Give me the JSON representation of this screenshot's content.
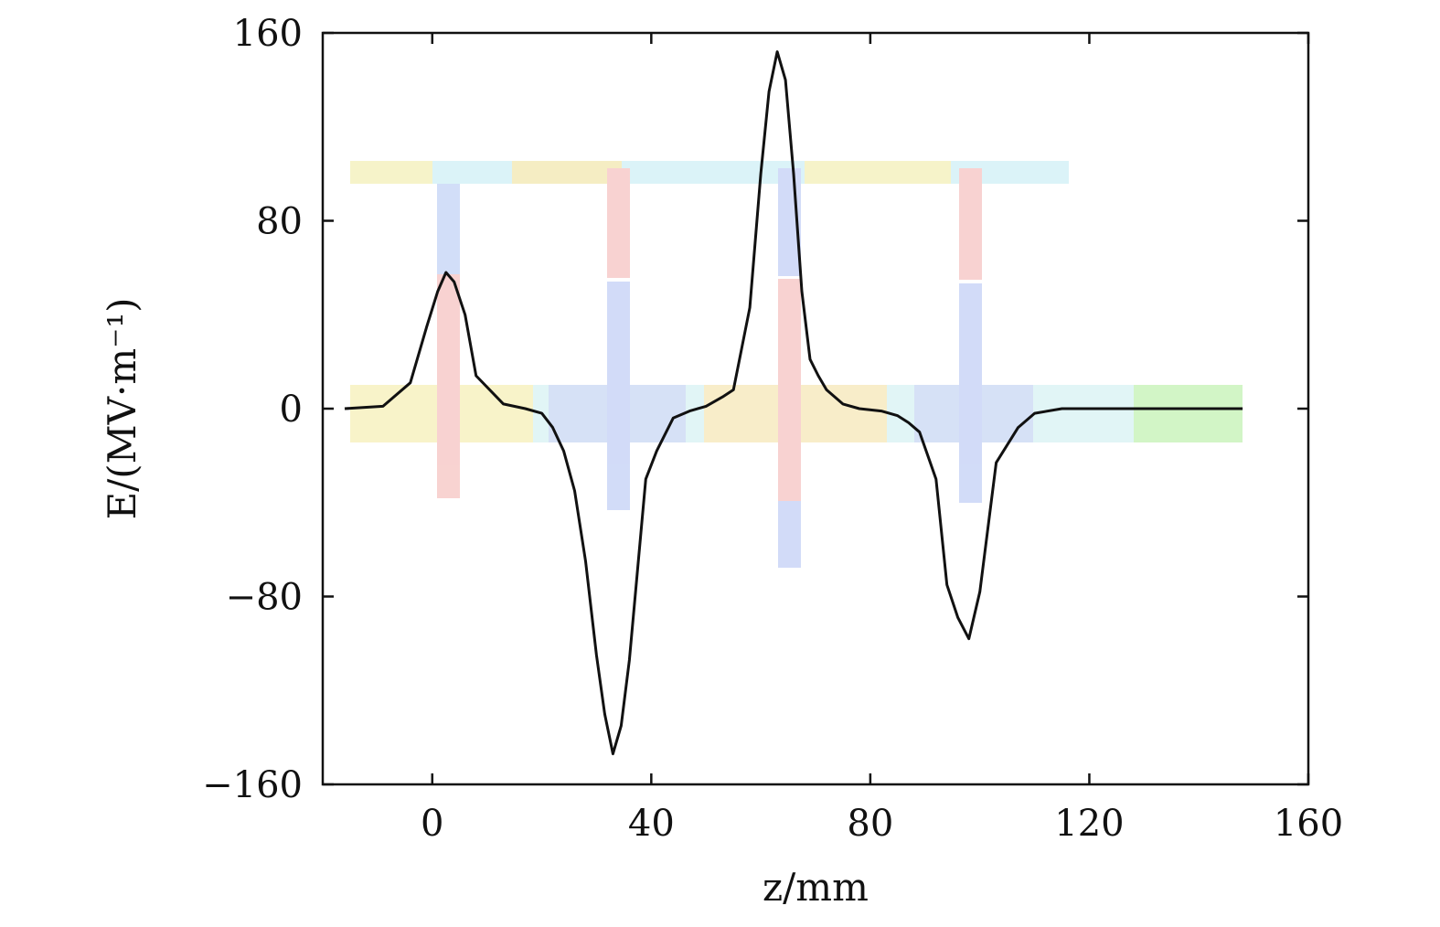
{
  "chart_data": {
    "type": "line",
    "title": "",
    "xlabel": "z/mm",
    "ylabel": "E/(MV·m⁻¹)",
    "xlim": [
      -20,
      160
    ],
    "ylim": [
      -160,
      160
    ],
    "xticks": [
      0,
      40,
      80,
      120,
      160
    ],
    "yticks": [
      -160,
      -80,
      0,
      80,
      160
    ],
    "xtick_labels": [
      "0",
      "40",
      "80",
      "120",
      "160"
    ],
    "ytick_labels": [
      "−160",
      "−80",
      "0",
      "80",
      "160"
    ],
    "grid": false,
    "legend": "none",
    "series": [
      {
        "name": "E",
        "color": "#111111",
        "x": [
          -16,
          -9,
          -4,
          -1,
          1,
          2.5,
          4,
          6,
          8,
          13,
          17,
          20,
          22,
          24,
          26,
          28,
          30,
          31.5,
          33,
          34.5,
          36,
          39,
          41,
          44,
          47,
          50,
          53,
          55,
          58,
          60,
          61.5,
          63,
          64.5,
          66,
          67.5,
          69,
          70.5,
          72,
          75,
          78,
          82,
          85,
          87,
          89,
          92,
          94,
          96,
          98,
          100,
          103,
          107,
          110,
          115,
          120,
          130,
          140,
          148
        ],
        "y": [
          0,
          1,
          11,
          35,
          50,
          58,
          54,
          40,
          14,
          2,
          0,
          -2,
          -8,
          -18,
          -35,
          -65,
          -105,
          -130,
          -147,
          -135,
          -107,
          -30,
          -18,
          -4,
          -1,
          1,
          5,
          8,
          43,
          100,
          135,
          152,
          140,
          100,
          50,
          21,
          14,
          8,
          2,
          0,
          -1,
          -3,
          -6,
          -10,
          -30,
          -75,
          -89,
          -98,
          -78,
          -23,
          -8,
          -2,
          0,
          0,
          0,
          0,
          0
        ]
      }
    ],
    "background_image": "electric-field-distribution-heatmap"
  }
}
